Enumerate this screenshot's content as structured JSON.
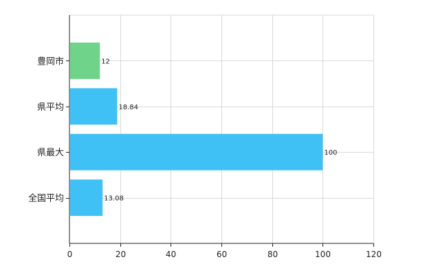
{
  "chart_data": {
    "type": "bar",
    "orientation": "horizontal",
    "categories": [
      "豊岡市",
      "県平均",
      "県最大",
      "全国平均"
    ],
    "values": [
      12,
      18.84,
      100,
      13.08
    ],
    "value_labels": [
      "12",
      "18.84",
      "100",
      "13.08"
    ],
    "bar_colors": [
      "#6fd38a",
      "#3fc1f5",
      "#3fc1f5",
      "#3fc1f5"
    ],
    "xlim": [
      0,
      120
    ],
    "xticks": [
      0,
      20,
      40,
      60,
      80,
      100,
      120
    ],
    "grid": true,
    "legend": "none"
  }
}
